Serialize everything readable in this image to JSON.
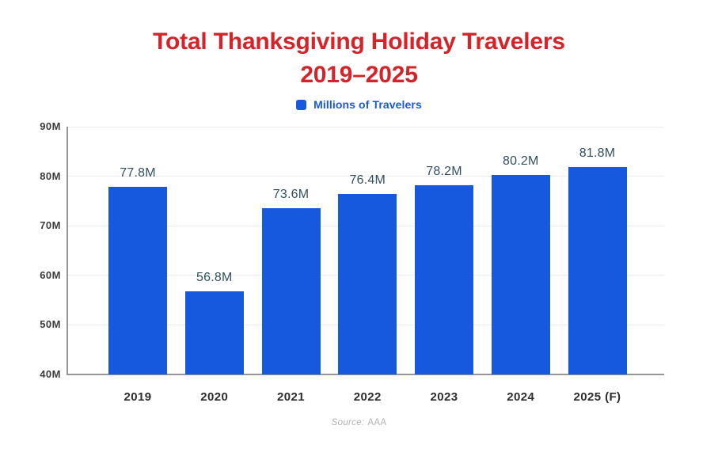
{
  "title": {
    "line1": "Total Thanksgiving Holiday Travelers",
    "line2": "2019–2025"
  },
  "legend": {
    "label": "Millions of Travelers"
  },
  "source": {
    "prefix": "Source:",
    "value": "AAA"
  },
  "colors": {
    "title_red": "#D42329",
    "bar_blue": "#1759DE",
    "value_label": "#33505F",
    "ytick_label": "#3B3B3B",
    "xtick_label": "#2D2D2D",
    "gridline": "#ECECEC",
    "axis_line": "#969696",
    "source_gray": "#B2B2B2",
    "background": "#FFFFFF"
  },
  "chart_data": {
    "type": "bar",
    "title": "Total Thanksgiving Holiday Travelers 2019–2025",
    "series_name": "Millions of Travelers",
    "categories": [
      "2019",
      "2020",
      "2021",
      "2022",
      "2023",
      "2024",
      "2025 (F)"
    ],
    "values": [
      77.8,
      56.8,
      73.6,
      76.4,
      78.2,
      80.2,
      81.8
    ],
    "value_labels": [
      "77.8M",
      "56.8M",
      "73.6M",
      "76.4M",
      "78.2M",
      "80.2M",
      "81.8M"
    ],
    "xlabel": "",
    "ylabel": "Millions of Travelers",
    "ylim": [
      40,
      90
    ],
    "yticks": [
      40,
      50,
      60,
      70,
      80,
      90
    ],
    "ytick_labels": [
      "40M",
      "50M",
      "60M",
      "70M",
      "80M",
      "90M"
    ],
    "legend": [
      "Millions of Travelers"
    ],
    "legend_position": "top",
    "grid": "horizontal"
  }
}
